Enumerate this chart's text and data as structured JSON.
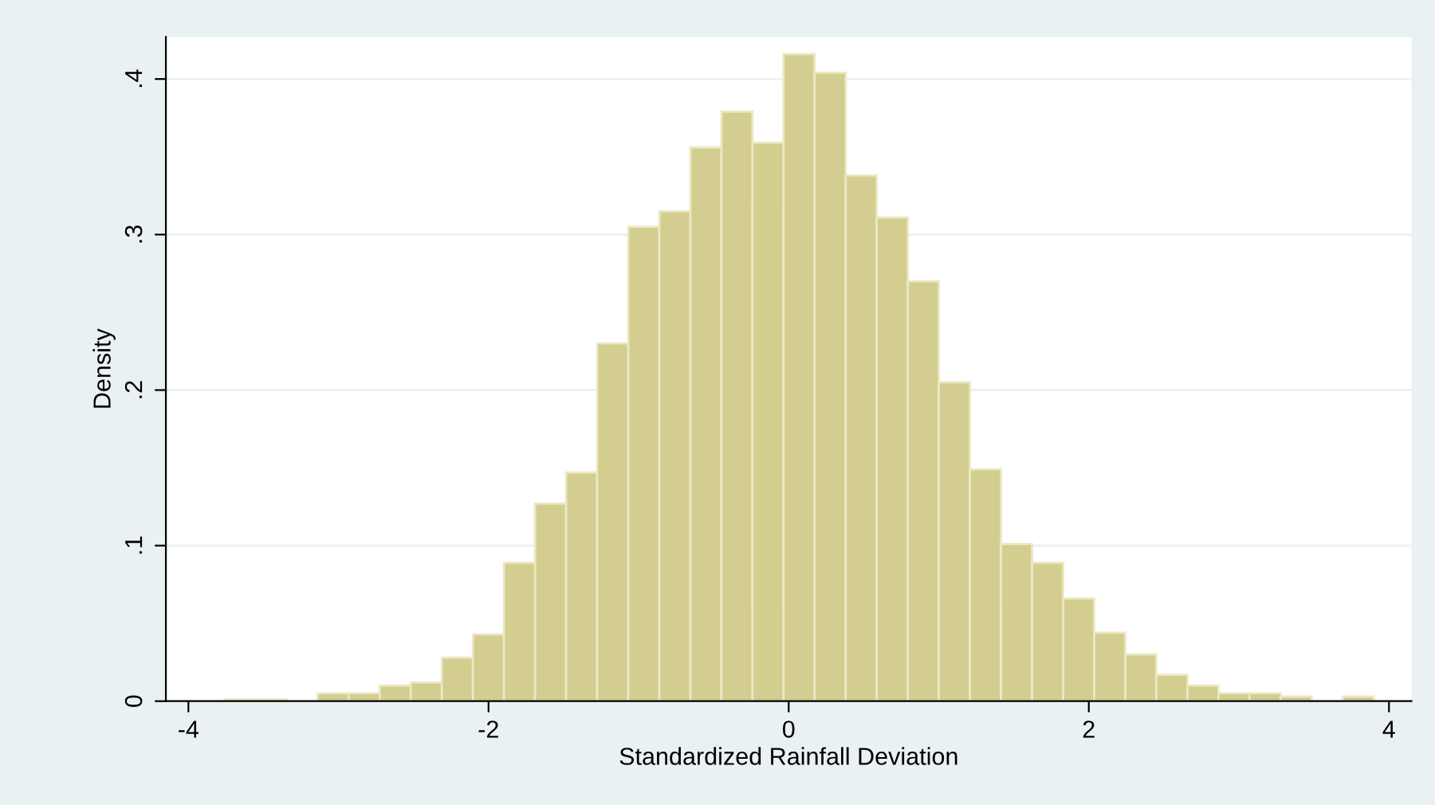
{
  "chart_data": {
    "type": "histogram",
    "xlabel": "Standardized Rainfall Deviation",
    "ylabel": "Density",
    "bins": [
      -3.76,
      -3.553,
      -3.346,
      -3.139,
      -2.932,
      -2.725,
      -2.518,
      -2.311,
      -2.104,
      -1.897,
      -1.69,
      -1.483,
      -1.276,
      -1.069,
      -0.862,
      -0.655,
      -0.448,
      -0.241,
      -0.034,
      0.173,
      0.38,
      0.587,
      0.794,
      1.001,
      1.208,
      1.415,
      1.622,
      1.829,
      2.036,
      2.243,
      2.45,
      2.657,
      2.864,
      3.071,
      3.278,
      3.485,
      3.692,
      3.899
    ],
    "values": [
      0.001,
      0.001,
      0,
      0.005,
      0.005,
      0.01,
      0.012,
      0.028,
      0.043,
      0.089,
      0.127,
      0.147,
      0.23,
      0.305,
      0.315,
      0.356,
      0.379,
      0.359,
      0.416,
      0.404,
      0.338,
      0.311,
      0.27,
      0.205,
      0.149,
      0.101,
      0.089,
      0.066,
      0.044,
      0.03,
      0.017,
      0.01,
      0.005,
      0.005,
      0.003,
      0,
      0.003
    ],
    "color": "#d3cd8f",
    "xlim": [
      -4.15,
      4.15
    ],
    "xticks": [
      -4,
      -2,
      0,
      2,
      4
    ],
    "ylim": [
      0,
      0.427
    ],
    "yticks": [
      {
        "value": 0,
        "label": "0"
      },
      {
        "value": 0.1,
        "label": ".1"
      },
      {
        "value": 0.2,
        "label": ".2"
      },
      {
        "value": 0.3,
        "label": ".3"
      },
      {
        "value": 0.4,
        "label": ".4"
      }
    ],
    "grid": "y"
  }
}
